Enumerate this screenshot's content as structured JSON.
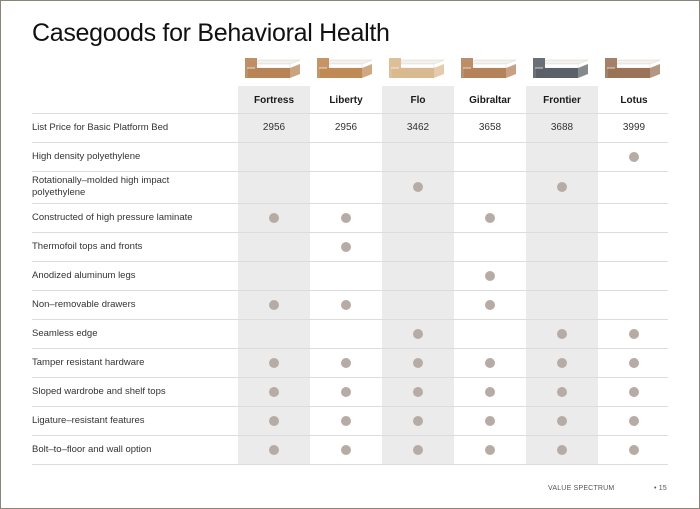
{
  "title": "Casegoods for Behavioral Health",
  "products": [
    {
      "name": "Fortress",
      "color": "#b88456"
    },
    {
      "name": "Liberty",
      "color": "#c08a55"
    },
    {
      "name": "Flo",
      "color": "#d9b98f"
    },
    {
      "name": "Gibraltar",
      "color": "#b5825a"
    },
    {
      "name": "Frontier",
      "color": "#5b6168"
    },
    {
      "name": "Lotus",
      "color": "#9a7358"
    }
  ],
  "price_row": {
    "label": "List Price for Basic Platform Bed",
    "values": [
      "2956",
      "2956",
      "3462",
      "3658",
      "3688",
      "3999"
    ]
  },
  "features": [
    {
      "label": "High density polyethylene",
      "marks": [
        false,
        false,
        false,
        false,
        false,
        true
      ]
    },
    {
      "label": "Rotationally–molded high impact polyethylene",
      "marks": [
        false,
        false,
        true,
        false,
        true,
        false
      ]
    },
    {
      "label": "Constructed of high pressure laminate",
      "marks": [
        true,
        true,
        false,
        true,
        false,
        false
      ]
    },
    {
      "label": "Thermofoil tops and fronts",
      "marks": [
        false,
        true,
        false,
        false,
        false,
        false
      ]
    },
    {
      "label": "Anodized aluminum legs",
      "marks": [
        false,
        false,
        false,
        true,
        false,
        false
      ]
    },
    {
      "label": "Non–removable drawers",
      "marks": [
        true,
        true,
        false,
        true,
        false,
        false
      ]
    },
    {
      "label": "Seamless edge",
      "marks": [
        false,
        false,
        true,
        false,
        true,
        true
      ]
    },
    {
      "label": "Tamper resistant hardware",
      "marks": [
        true,
        true,
        true,
        true,
        true,
        true
      ]
    },
    {
      "label": "Sloped wardrobe and shelf tops",
      "marks": [
        true,
        true,
        true,
        true,
        true,
        true
      ]
    },
    {
      "label": "Ligature–resistant features",
      "marks": [
        true,
        true,
        true,
        true,
        true,
        true
      ]
    },
    {
      "label": "Bolt–to–floor and wall option",
      "marks": [
        true,
        true,
        true,
        true,
        true,
        true
      ]
    }
  ],
  "colors": {
    "shaded_column": "#ebebeb",
    "dot": "#b6aca5",
    "border": "#8a8378"
  },
  "footer": {
    "section": "VALUE SPECTRUM",
    "page": "• 15"
  }
}
